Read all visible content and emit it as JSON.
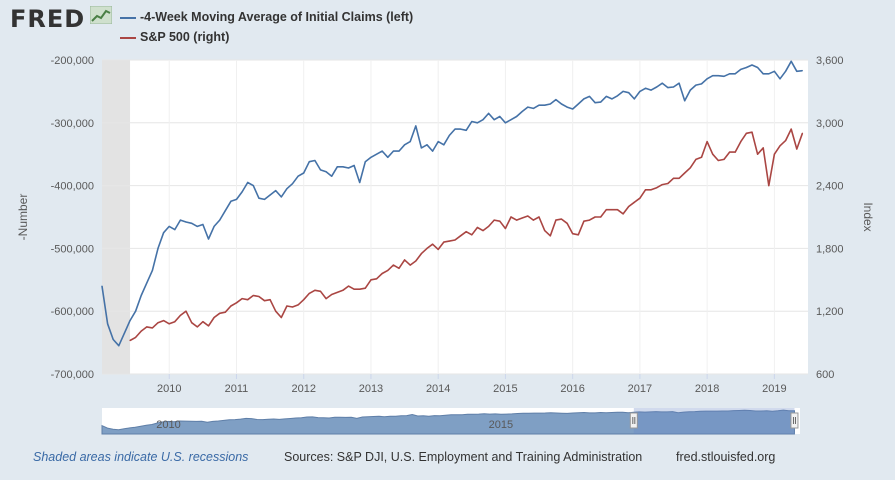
{
  "header": {
    "logo_text": "FRED",
    "logo_icon": "trend-chart-icon"
  },
  "legend": [
    {
      "label": "-4-Week Moving Average of Initial Claims (left)",
      "color": "#4572a7"
    },
    {
      "label": "S&P 500 (right)",
      "color": "#aa4643"
    }
  ],
  "chart_data": {
    "type": "line",
    "ylabel_left": "-Number",
    "ylabel_right": "Index",
    "y_left_range": [
      -700000,
      -200000
    ],
    "y_right_range": [
      600,
      3600
    ],
    "y_left_ticks": [
      "-200,000",
      "-300,000",
      "-400,000",
      "-500,000",
      "-600,000",
      "-700,000"
    ],
    "y_right_ticks": [
      "3,600",
      "3,000",
      "2,400",
      "1,800",
      "1,200",
      "600"
    ],
    "x_ticks": [
      "2010",
      "2011",
      "2012",
      "2013",
      "2014",
      "2015",
      "2016",
      "2017",
      "2018",
      "2019"
    ],
    "grid": true,
    "recession": {
      "start": "2009-01",
      "end": "2009-06"
    },
    "series": [
      {
        "name": "-4-Week Moving Average of Initial Claims (left)",
        "axis": "left",
        "color": "#4572a7",
        "points": [
          [
            "2009-01",
            -560000
          ],
          [
            "2009-02",
            -620000
          ],
          [
            "2009-03",
            -645000
          ],
          [
            "2009-04",
            -655000
          ],
          [
            "2009-05",
            -635000
          ],
          [
            "2009-06",
            -615000
          ],
          [
            "2009-07",
            -600000
          ],
          [
            "2009-08",
            -575000
          ],
          [
            "2009-09",
            -555000
          ],
          [
            "2009-10",
            -535000
          ],
          [
            "2009-11",
            -500000
          ],
          [
            "2009-12",
            -475000
          ],
          [
            "2010-01",
            -465000
          ],
          [
            "2010-02",
            -470000
          ],
          [
            "2010-03",
            -455000
          ],
          [
            "2010-04",
            -458000
          ],
          [
            "2010-05",
            -460000
          ],
          [
            "2010-06",
            -465000
          ],
          [
            "2010-07",
            -462000
          ],
          [
            "2010-08",
            -485000
          ],
          [
            "2010-09",
            -465000
          ],
          [
            "2010-10",
            -455000
          ],
          [
            "2010-11",
            -440000
          ],
          [
            "2010-12",
            -425000
          ],
          [
            "2011-01",
            -422000
          ],
          [
            "2011-02",
            -410000
          ],
          [
            "2011-03",
            -395000
          ],
          [
            "2011-04",
            -400000
          ],
          [
            "2011-05",
            -420000
          ],
          [
            "2011-06",
            -422000
          ],
          [
            "2011-07",
            -415000
          ],
          [
            "2011-08",
            -408000
          ],
          [
            "2011-09",
            -418000
          ],
          [
            "2011-10",
            -405000
          ],
          [
            "2011-11",
            -397000
          ],
          [
            "2011-12",
            -385000
          ],
          [
            "2012-01",
            -380000
          ],
          [
            "2012-02",
            -362000
          ],
          [
            "2012-03",
            -360000
          ],
          [
            "2012-04",
            -375000
          ],
          [
            "2012-05",
            -378000
          ],
          [
            "2012-06",
            -385000
          ],
          [
            "2012-07",
            -370000
          ],
          [
            "2012-08",
            -370000
          ],
          [
            "2012-09",
            -372000
          ],
          [
            "2012-10",
            -368000
          ],
          [
            "2012-11",
            -395000
          ],
          [
            "2012-12",
            -362000
          ],
          [
            "2013-01",
            -355000
          ],
          [
            "2013-02",
            -350000
          ],
          [
            "2013-03",
            -345000
          ],
          [
            "2013-04",
            -355000
          ],
          [
            "2013-05",
            -345000
          ],
          [
            "2013-06",
            -345000
          ],
          [
            "2013-07",
            -335000
          ],
          [
            "2013-08",
            -330000
          ],
          [
            "2013-09",
            -305000
          ],
          [
            "2013-10",
            -340000
          ],
          [
            "2013-11",
            -335000
          ],
          [
            "2013-12",
            -345000
          ],
          [
            "2014-01",
            -330000
          ],
          [
            "2014-02",
            -335000
          ],
          [
            "2014-03",
            -320000
          ],
          [
            "2014-04",
            -310000
          ],
          [
            "2014-05",
            -310000
          ],
          [
            "2014-06",
            -312000
          ],
          [
            "2014-07",
            -298000
          ],
          [
            "2014-08",
            -300000
          ],
          [
            "2014-09",
            -295000
          ],
          [
            "2014-10",
            -285000
          ],
          [
            "2014-11",
            -295000
          ],
          [
            "2014-12",
            -290000
          ],
          [
            "2015-01",
            -300000
          ],
          [
            "2015-02",
            -295000
          ],
          [
            "2015-03",
            -290000
          ],
          [
            "2015-04",
            -282000
          ],
          [
            "2015-05",
            -275000
          ],
          [
            "2015-06",
            -277000
          ],
          [
            "2015-07",
            -272000
          ],
          [
            "2015-08",
            -272000
          ],
          [
            "2015-09",
            -270000
          ],
          [
            "2015-10",
            -263000
          ],
          [
            "2015-11",
            -270000
          ],
          [
            "2015-12",
            -275000
          ],
          [
            "2016-01",
            -278000
          ],
          [
            "2016-02",
            -270000
          ],
          [
            "2016-03",
            -262000
          ],
          [
            "2016-04",
            -258000
          ],
          [
            "2016-05",
            -268000
          ],
          [
            "2016-06",
            -267000
          ],
          [
            "2016-07",
            -258000
          ],
          [
            "2016-08",
            -262000
          ],
          [
            "2016-09",
            -257000
          ],
          [
            "2016-10",
            -250000
          ],
          [
            "2016-11",
            -252000
          ],
          [
            "2016-12",
            -262000
          ],
          [
            "2017-01",
            -250000
          ],
          [
            "2017-02",
            -245000
          ],
          [
            "2017-03",
            -248000
          ],
          [
            "2017-04",
            -243000
          ],
          [
            "2017-05",
            -237000
          ],
          [
            "2017-06",
            -244000
          ],
          [
            "2017-07",
            -243000
          ],
          [
            "2017-08",
            -237000
          ],
          [
            "2017-09",
            -265000
          ],
          [
            "2017-10",
            -248000
          ],
          [
            "2017-11",
            -240000
          ],
          [
            "2017-12",
            -238000
          ],
          [
            "2018-01",
            -230000
          ],
          [
            "2018-02",
            -225000
          ],
          [
            "2018-03",
            -225000
          ],
          [
            "2018-04",
            -226000
          ],
          [
            "2018-05",
            -222000
          ],
          [
            "2018-06",
            -222000
          ],
          [
            "2018-07",
            -215000
          ],
          [
            "2018-08",
            -212000
          ],
          [
            "2018-09",
            -208000
          ],
          [
            "2018-10",
            -212000
          ],
          [
            "2018-11",
            -222000
          ],
          [
            "2018-12",
            -222000
          ],
          [
            "2019-01",
            -218000
          ],
          [
            "2019-02",
            -230000
          ],
          [
            "2019-03",
            -218000
          ],
          [
            "2019-04",
            -202000
          ],
          [
            "2019-05",
            -218000
          ],
          [
            "2019-06",
            -217000
          ]
        ]
      },
      {
        "name": "S&P 500 (right)",
        "axis": "right",
        "color": "#aa4643",
        "points": [
          [
            "2009-06",
            920
          ],
          [
            "2009-07",
            950
          ],
          [
            "2009-08",
            1010
          ],
          [
            "2009-09",
            1050
          ],
          [
            "2009-10",
            1040
          ],
          [
            "2009-11",
            1090
          ],
          [
            "2009-12",
            1110
          ],
          [
            "2010-01",
            1080
          ],
          [
            "2010-02",
            1100
          ],
          [
            "2010-03",
            1160
          ],
          [
            "2010-04",
            1200
          ],
          [
            "2010-05",
            1090
          ],
          [
            "2010-06",
            1050
          ],
          [
            "2010-07",
            1100
          ],
          [
            "2010-08",
            1060
          ],
          [
            "2010-09",
            1140
          ],
          [
            "2010-10",
            1180
          ],
          [
            "2010-11",
            1190
          ],
          [
            "2010-12",
            1250
          ],
          [
            "2011-01",
            1280
          ],
          [
            "2011-02",
            1320
          ],
          [
            "2011-03",
            1310
          ],
          [
            "2011-04",
            1350
          ],
          [
            "2011-05",
            1340
          ],
          [
            "2011-06",
            1300
          ],
          [
            "2011-07",
            1310
          ],
          [
            "2011-08",
            1200
          ],
          [
            "2011-09",
            1140
          ],
          [
            "2011-10",
            1250
          ],
          [
            "2011-11",
            1240
          ],
          [
            "2011-12",
            1260
          ],
          [
            "2012-01",
            1310
          ],
          [
            "2012-02",
            1370
          ],
          [
            "2012-03",
            1400
          ],
          [
            "2012-04",
            1390
          ],
          [
            "2012-05",
            1320
          ],
          [
            "2012-06",
            1360
          ],
          [
            "2012-07",
            1380
          ],
          [
            "2012-08",
            1400
          ],
          [
            "2012-09",
            1440
          ],
          [
            "2012-10",
            1410
          ],
          [
            "2012-11",
            1410
          ],
          [
            "2012-12",
            1420
          ],
          [
            "2013-01",
            1500
          ],
          [
            "2013-02",
            1510
          ],
          [
            "2013-03",
            1560
          ],
          [
            "2013-04",
            1590
          ],
          [
            "2013-05",
            1640
          ],
          [
            "2013-06",
            1610
          ],
          [
            "2013-07",
            1690
          ],
          [
            "2013-08",
            1640
          ],
          [
            "2013-09",
            1680
          ],
          [
            "2013-10",
            1750
          ],
          [
            "2013-11",
            1800
          ],
          [
            "2013-12",
            1840
          ],
          [
            "2014-01",
            1790
          ],
          [
            "2014-02",
            1860
          ],
          [
            "2014-03",
            1870
          ],
          [
            "2014-04",
            1880
          ],
          [
            "2014-05",
            1920
          ],
          [
            "2014-06",
            1960
          ],
          [
            "2014-07",
            1930
          ],
          [
            "2014-08",
            2000
          ],
          [
            "2014-09",
            1970
          ],
          [
            "2014-10",
            2010
          ],
          [
            "2014-11",
            2070
          ],
          [
            "2014-12",
            2060
          ],
          [
            "2015-01",
            1990
          ],
          [
            "2015-02",
            2100
          ],
          [
            "2015-03",
            2070
          ],
          [
            "2015-04",
            2090
          ],
          [
            "2015-05",
            2110
          ],
          [
            "2015-06",
            2070
          ],
          [
            "2015-07",
            2100
          ],
          [
            "2015-08",
            1970
          ],
          [
            "2015-09",
            1920
          ],
          [
            "2015-10",
            2070
          ],
          [
            "2015-11",
            2080
          ],
          [
            "2015-12",
            2040
          ],
          [
            "2016-01",
            1940
          ],
          [
            "2016-02",
            1930
          ],
          [
            "2016-03",
            2060
          ],
          [
            "2016-04",
            2070
          ],
          [
            "2016-05",
            2100
          ],
          [
            "2016-06",
            2100
          ],
          [
            "2016-07",
            2170
          ],
          [
            "2016-08",
            2170
          ],
          [
            "2016-09",
            2170
          ],
          [
            "2016-10",
            2130
          ],
          [
            "2016-11",
            2200
          ],
          [
            "2016-12",
            2240
          ],
          [
            "2017-01",
            2280
          ],
          [
            "2017-02",
            2360
          ],
          [
            "2017-03",
            2360
          ],
          [
            "2017-04",
            2380
          ],
          [
            "2017-05",
            2410
          ],
          [
            "2017-06",
            2420
          ],
          [
            "2017-07",
            2470
          ],
          [
            "2017-08",
            2470
          ],
          [
            "2017-09",
            2520
          ],
          [
            "2017-10",
            2570
          ],
          [
            "2017-11",
            2650
          ],
          [
            "2017-12",
            2670
          ],
          [
            "2018-01",
            2820
          ],
          [
            "2018-02",
            2700
          ],
          [
            "2018-03",
            2640
          ],
          [
            "2018-04",
            2650
          ],
          [
            "2018-05",
            2720
          ],
          [
            "2018-06",
            2720
          ],
          [
            "2018-07",
            2820
          ],
          [
            "2018-08",
            2900
          ],
          [
            "2018-09",
            2910
          ],
          [
            "2018-10",
            2700
          ],
          [
            "2018-11",
            2760
          ],
          [
            "2018-12",
            2400
          ],
          [
            "2019-01",
            2700
          ],
          [
            "2019-02",
            2780
          ],
          [
            "2019-03",
            2830
          ],
          [
            "2019-04",
            2940
          ],
          [
            "2019-05",
            2750
          ],
          [
            "2019-06",
            2900
          ]
        ]
      }
    ]
  },
  "footer": {
    "recession_note": "Shaded areas indicate U.S. recessions",
    "sources": "Sources: S&P DJI, U.S. Employment and Training Administration",
    "site": "fred.stlouisfed.org"
  },
  "navigator": {
    "labels": [
      "2010",
      "2015"
    ],
    "selection_start": "2017-01",
    "selection_end": "2019-06"
  }
}
